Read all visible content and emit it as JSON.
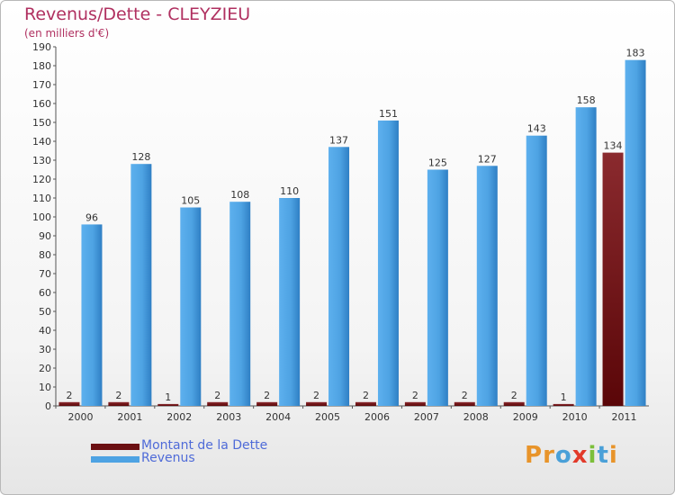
{
  "title": "Revenus/Dette - CLEYZIEU",
  "subtitle": "(en milliers d'€)",
  "logo": "Proxiti",
  "colors": {
    "dette": "#6b0f12",
    "revenus": "#4ea3e3",
    "axis_text": "#333333",
    "title": "#b03060"
  },
  "chart_data": {
    "type": "bar",
    "categories": [
      "2000",
      "2001",
      "2002",
      "2003",
      "2004",
      "2005",
      "2006",
      "2007",
      "2008",
      "2009",
      "2010",
      "2011"
    ],
    "series": [
      {
        "name": "Montant de la Dette",
        "values": [
          2,
          2,
          1,
          2,
          2,
          2,
          2,
          2,
          2,
          2,
          1,
          134
        ]
      },
      {
        "name": "Revenus",
        "values": [
          96,
          128,
          105,
          108,
          110,
          137,
          151,
          125,
          127,
          143,
          158,
          183
        ]
      }
    ],
    "ylim": [
      0,
      190
    ],
    "yticks": [
      0,
      10,
      20,
      30,
      40,
      50,
      60,
      70,
      80,
      90,
      100,
      110,
      120,
      130,
      140,
      150,
      160,
      170,
      180,
      190
    ],
    "grid": false,
    "legend": "bottom-left"
  }
}
